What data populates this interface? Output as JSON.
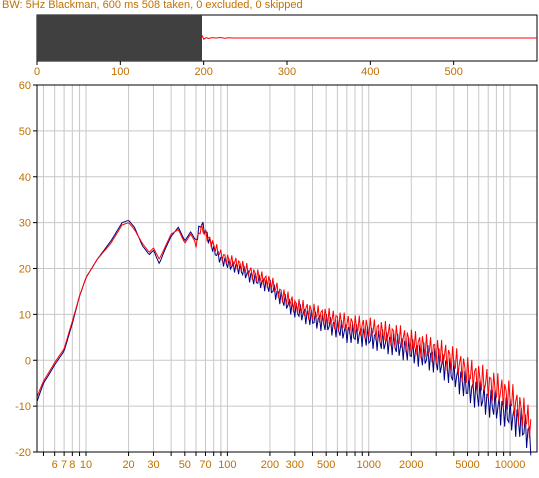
{
  "title": "BW: 5Hz Blackman, 600 ms 508 taken, 0 excluded, 0 skipped",
  "colors": {
    "axis_text": "#c07000",
    "grid": "#c8c8c8",
    "trace_a": "#000080",
    "trace_b": "#ff0000",
    "window_fill": "#404040"
  },
  "chart_data": [
    {
      "type": "line",
      "xlim": [
        0,
        600
      ],
      "xticks": [
        0,
        100,
        200,
        300,
        400,
        500
      ],
      "window": {
        "start": 0,
        "end": 198
      },
      "series": [
        {
          "color": "#ff0000",
          "x": [
            198,
            200,
            203,
            206,
            210,
            215,
            220,
            225,
            230,
            235,
            240,
            300,
            400,
            500,
            600
          ],
          "y": [
            0.35,
            -0.15,
            0.05,
            -0.06,
            0.05,
            0.0,
            0.06,
            -0.04,
            0.03,
            0.0,
            0.0,
            0.0,
            0.0,
            0.0,
            0.0
          ]
        }
      ]
    },
    {
      "type": "line",
      "xscale": "log",
      "xlim": [
        4.5,
        15500
      ],
      "ylim": [
        -20,
        60
      ],
      "yticks": [
        -20,
        -10,
        0,
        10,
        20,
        30,
        40,
        50,
        60
      ],
      "xtick_labels": [
        6,
        7,
        8,
        10,
        20,
        30,
        50,
        70,
        100,
        200,
        300,
        500,
        1000,
        2000,
        5000,
        10000
      ],
      "grid": true,
      "series": [
        {
          "color": "#000080",
          "x": [
            4.5,
            5,
            5.5,
            6,
            7,
            8,
            9,
            10,
            12,
            15,
            18,
            20,
            22,
            25,
            28,
            30,
            33,
            36,
            40,
            45,
            50,
            55,
            60,
            65,
            70,
            80,
            90,
            100,
            120,
            150,
            200,
            250,
            300,
            400,
            500,
            700,
            1000,
            1500,
            2000,
            3000,
            4000,
            5000,
            7000,
            10000,
            12000,
            14000
          ],
          "y": [
            -9,
            -5,
            -3,
            -1,
            2,
            8,
            14,
            18,
            22,
            26,
            30,
            30.5,
            29,
            25,
            23,
            24,
            21,
            24,
            27,
            29,
            26,
            28,
            26,
            30,
            28,
            24,
            22,
            21,
            20,
            18,
            16,
            13,
            11,
            9,
            8,
            6,
            5,
            3.5,
            2,
            0,
            -3,
            -6,
            -9,
            -12,
            -14,
            -17
          ]
        },
        {
          "color": "#ff0000",
          "x": [
            4.5,
            5,
            5.5,
            6,
            7,
            8,
            9,
            10,
            12,
            15,
            18,
            20,
            22,
            25,
            28,
            30,
            33,
            36,
            40,
            45,
            50,
            55,
            60,
            65,
            70,
            80,
            90,
            100,
            120,
            150,
            200,
            250,
            300,
            400,
            500,
            700,
            1000,
            1500,
            2000,
            3000,
            4000,
            5000,
            7000,
            10000,
            12000,
            14000
          ],
          "y": [
            -8,
            -4.5,
            -2.5,
            -0.5,
            2.5,
            8.5,
            14,
            18,
            22,
            25.5,
            29.5,
            30,
            28.5,
            25.5,
            23.5,
            24.5,
            22,
            24.5,
            27.5,
            28.5,
            25.5,
            27.5,
            25.5,
            29,
            27.5,
            25,
            23,
            22,
            21,
            19,
            17,
            14,
            12,
            10.5,
            9.5,
            8,
            7,
            5.5,
            4,
            2,
            0,
            -2.5,
            -5,
            -8,
            -11,
            -14
          ]
        }
      ]
    }
  ]
}
